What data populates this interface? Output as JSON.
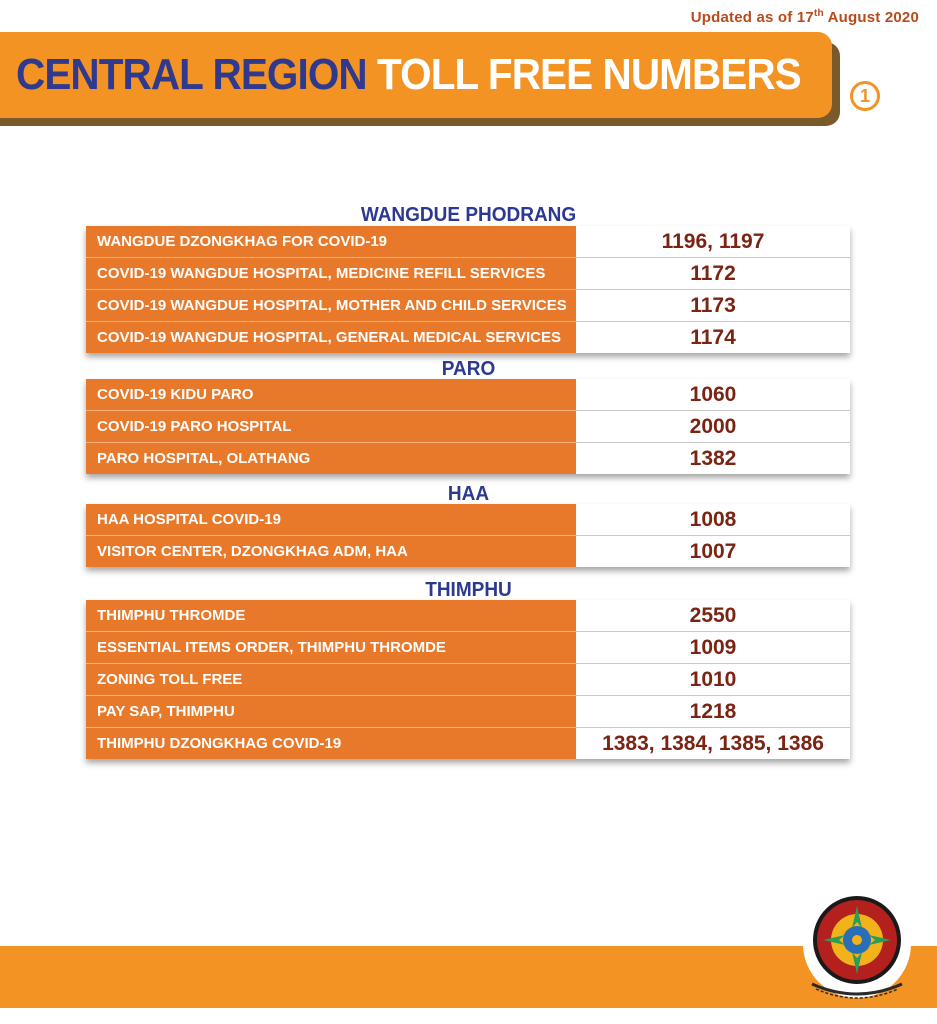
{
  "updated": {
    "prefix": "Updated as of 17",
    "sup": "th",
    "suffix": " August 2020"
  },
  "banner": {
    "part1": "CENTRAL REGION",
    "part2": "TOLL FREE NUMBERS"
  },
  "page_number": "1",
  "sections": [
    {
      "title": "WANGDUE PHODRANG",
      "rows": [
        {
          "label": "WANGDUE DZONGKHAG FOR COVID-19",
          "number": "1196, 1197"
        },
        {
          "label": "COVID-19 WANGDUE HOSPITAL, MEDICINE REFILL SERVICES",
          "number": "1172"
        },
        {
          "label": "COVID-19 WANGDUE HOSPITAL, MOTHER AND CHILD SERVICES",
          "number": "1173"
        },
        {
          "label": "COVID-19 WANGDUE HOSPITAL, GENERAL MEDICAL SERVICES",
          "number": "1174"
        }
      ]
    },
    {
      "title": "PARO",
      "rows": [
        {
          "label": "COVID-19  KIDU PARO",
          "number": "1060"
        },
        {
          "label": "COVID-19 PARO HOSPITAL",
          "number": "2000"
        },
        {
          "label": "PARO HOSPITAL, OLATHANG",
          "number": "1382"
        }
      ]
    },
    {
      "title": "HAA",
      "rows": [
        {
          "label": "HAA HOSPITAL COVID-19",
          "number": "1008"
        },
        {
          "label": "VISITOR CENTER, DZONGKHAG ADM, HAA",
          "number": "1007"
        }
      ]
    },
    {
      "title": "THIMPHU",
      "rows": [
        {
          "label": "THIMPHU THROMDE",
          "number": "2550"
        },
        {
          "label": "ESSENTIAL ITEMS ORDER, THIMPHU THROMDE",
          "number": "1009"
        },
        {
          "label": "ZONING TOLL FREE",
          "number": "1010"
        },
        {
          "label": "PAY SAP, THIMPHU",
          "number": "1218"
        },
        {
          "label": "THIMPHU DZONGKHAG COVID-19",
          "number": "1383, 1384, 1385, 1386"
        }
      ]
    }
  ],
  "colors": {
    "orange": "#f29323",
    "label_orange": "#e8792a",
    "navy": "#2b3990",
    "number": "#7a2414"
  },
  "emblem_icon": "royal-emblem-icon"
}
